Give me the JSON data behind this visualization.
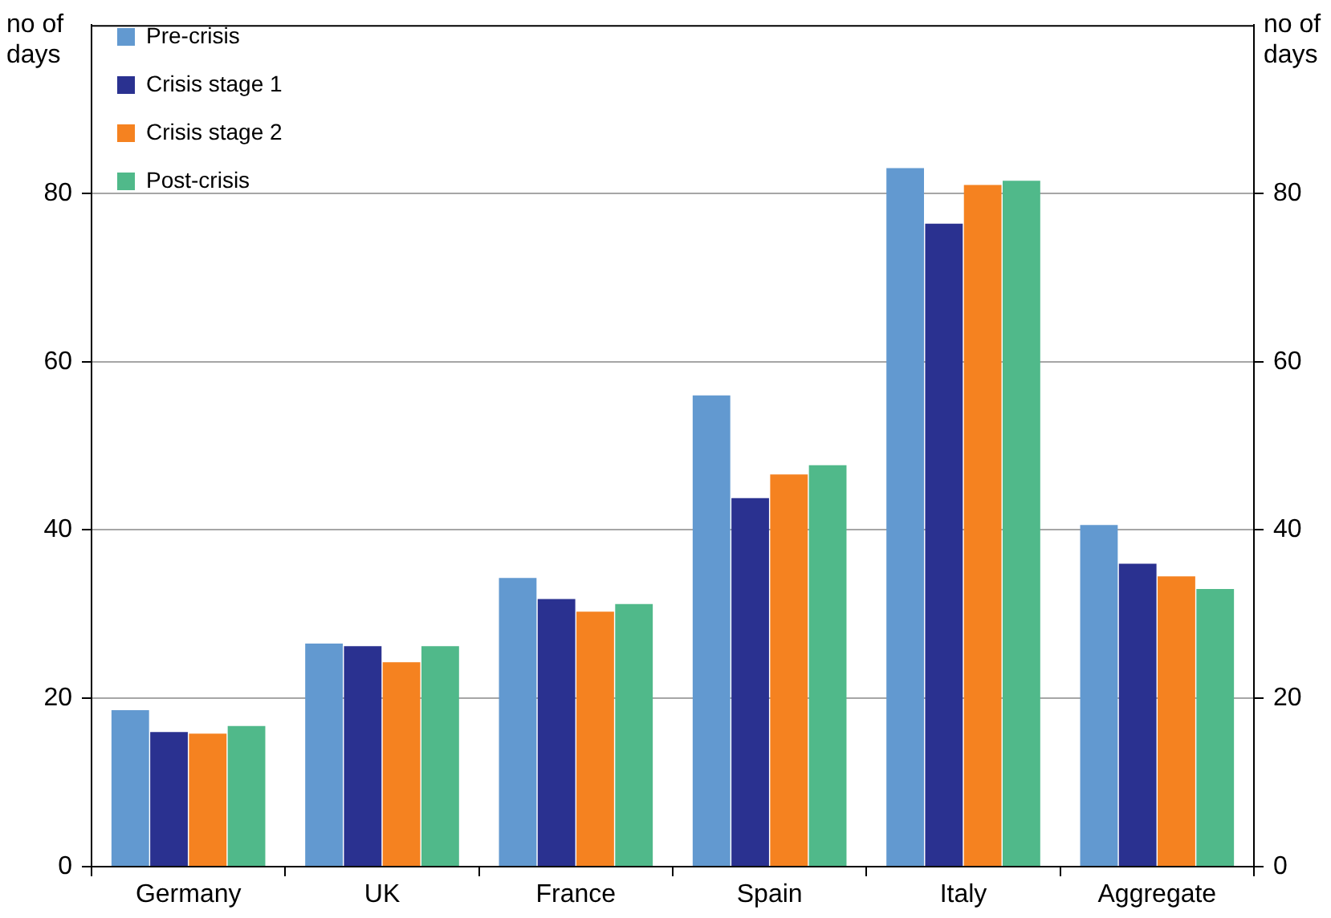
{
  "chart_data": {
    "type": "bar",
    "ylabel": "no of days",
    "y2label": "no of days",
    "categories": [
      "Germany",
      "UK",
      "France",
      "Spain",
      "Italy",
      "Aggregate"
    ],
    "series": [
      {
        "name": "Pre-crisis",
        "color": "#6299d0",
        "values": [
          18.6,
          26.5,
          34.3,
          56,
          83,
          40.6
        ]
      },
      {
        "name": "Crisis stage 1",
        "color": "#2a3190",
        "values": [
          16,
          26.2,
          31.8,
          43.8,
          76.4,
          36
        ]
      },
      {
        "name": "Crisis stage 2",
        "color": "#f58220",
        "values": [
          15.8,
          24.3,
          30.3,
          46.6,
          81,
          34.5
        ]
      },
      {
        "name": "Post-crisis",
        "color": "#50b98a",
        "values": [
          16.7,
          26.2,
          31.2,
          47.7,
          81.5,
          33
        ]
      }
    ],
    "ylim": [
      0,
      100
    ],
    "yticks": [
      0,
      20,
      40,
      60,
      80
    ],
    "y2lim": [
      0,
      100
    ],
    "y2ticks": [
      0,
      20,
      40,
      60,
      80
    ],
    "grid": "y",
    "legend": "top left"
  }
}
